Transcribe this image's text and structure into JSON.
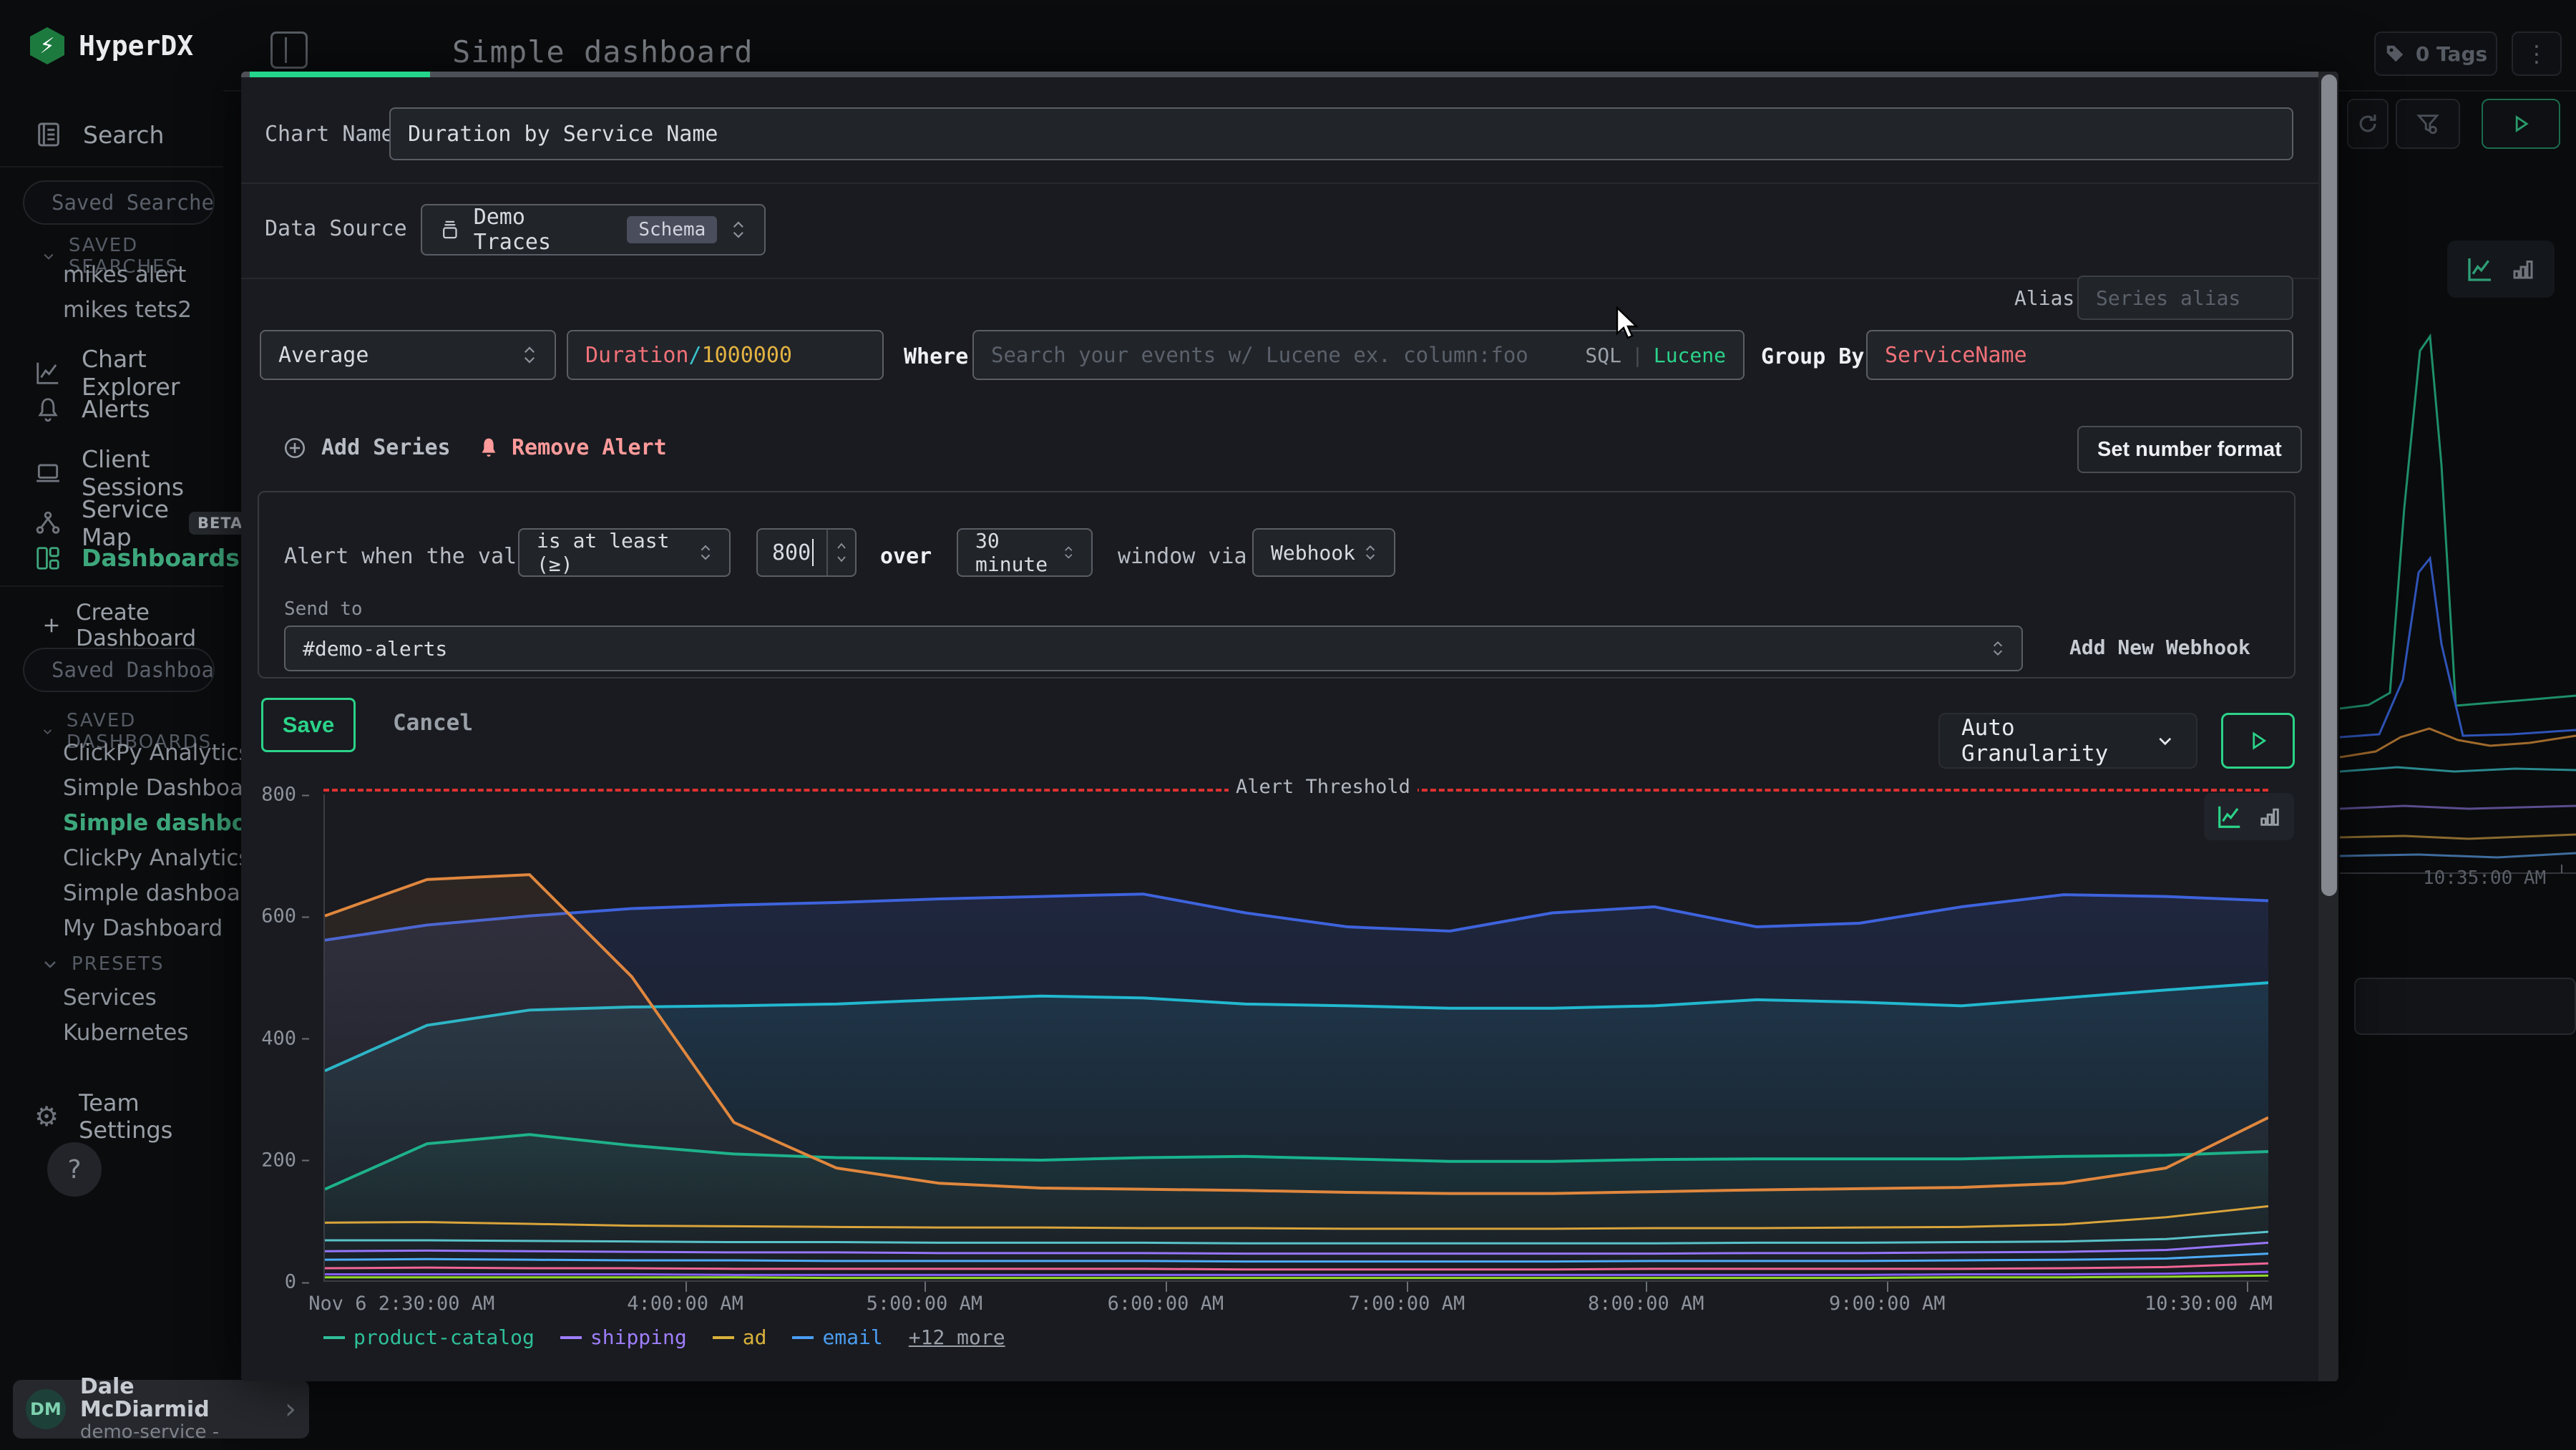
{
  "app": {
    "brand": "HyperDX",
    "accent_green": "#2bd389",
    "active_green": "#3da77c",
    "alert_red": "#e03131",
    "pink": "#ff9b9b"
  },
  "header": {
    "title": "Simple dashboard"
  },
  "topbar_right": {
    "tags_label": "0 Tags",
    "kebab": "⋮"
  },
  "sidebar": {
    "search_label": "Search",
    "saved_searches_placeholder": "Saved Searches",
    "saved_searches_header": "SAVED SEARCHES",
    "saved_searches": [
      "mikes alert",
      "mikes tets2"
    ],
    "nav": [
      {
        "label": "Chart Explorer",
        "icon": "chart-line-icon",
        "active": false
      },
      {
        "label": "Alerts",
        "icon": "bell-icon",
        "active": false
      },
      {
        "label": "Client Sessions",
        "icon": "laptop-icon",
        "active": false
      },
      {
        "label": "Service Map",
        "icon": "service-map-icon",
        "active": false,
        "badge": "BETA"
      },
      {
        "label": "Dashboards",
        "icon": "grid-icon",
        "active": true
      }
    ],
    "create_dashboard": "Create Dashboard",
    "saved_dashboards_placeholder": "Saved Dashboards",
    "saved_dashboards_header": "SAVED DASHBOARDS",
    "dashboards": [
      {
        "label": "ClickPy Analytics",
        "active": false
      },
      {
        "label": "Simple Dashboard",
        "active": false
      },
      {
        "label": "Simple dashboard",
        "active": true
      },
      {
        "label": "ClickPy Analytics",
        "active": false
      },
      {
        "label": "Simple dashboard",
        "active": false
      },
      {
        "label": "My Dashboard",
        "active": false
      }
    ],
    "presets_header": "PRESETS",
    "presets": [
      "Services",
      "Kubernetes"
    ],
    "team_settings": "Team Settings",
    "help": "?",
    "user": {
      "initials": "DM",
      "name": "Dale McDiarmid",
      "subtitle": "demo-service -",
      "caret": "›"
    }
  },
  "background_right": {
    "time_label": "10:35:00 AM"
  },
  "modal": {
    "chart_name_label": "Chart Name",
    "chart_name_value": "Duration by Service Name",
    "data_source_label": "Data Source",
    "data_source_value": "Demo Traces",
    "data_source_badge": "Schema",
    "alias_label": "Alias",
    "alias_placeholder": "Series alias",
    "aggregation_value": "Average",
    "field_expr": {
      "field": "Duration",
      "op": "/",
      "number": "1000000"
    },
    "where_label": "Where",
    "search_placeholder": "Search your events w/ Lucene ex. column:foo",
    "lang_sql": "SQL",
    "lang_sep": "|",
    "lang_lucene": "Lucene",
    "group_by_label": "Group By",
    "group_by_value": "ServiceName",
    "add_series_label": "Add Series",
    "remove_alert_label": "Remove Alert",
    "set_number_format_label": "Set number format",
    "alert": {
      "prefix": "Alert when the value",
      "condition": "is at least (≥)",
      "threshold": "800",
      "over_label": "over",
      "window": "30 minute",
      "via_label": "window via",
      "channel": "Webhook",
      "send_to_label": "Send to",
      "webhook_value": "#demo-alerts",
      "add_new_webhook_label": "Add New Webhook"
    },
    "save_label": "Save",
    "cancel_label": "Cancel",
    "granularity_value": "Auto Granularity"
  },
  "chart_data": {
    "type": "line",
    "title": "Duration by Service Name",
    "ylim": [
      0,
      800
    ],
    "yticks": [
      0,
      200,
      400,
      600,
      800
    ],
    "xticks": [
      {
        "label": "Nov 6 2:30:00 AM",
        "pos": 0
      },
      {
        "label": "4:00:00 AM",
        "pos": 18.6
      },
      {
        "label": "5:00:00 AM",
        "pos": 30.9
      },
      {
        "label": "6:00:00 AM",
        "pos": 43.3
      },
      {
        "label": "7:00:00 AM",
        "pos": 55.7
      },
      {
        "label": "8:00:00 AM",
        "pos": 68.0
      },
      {
        "label": "9:00:00 AM",
        "pos": 80.4
      },
      {
        "label": "10:30:00 AM",
        "pos": 98.9
      }
    ],
    "alert_threshold": {
      "value": 800,
      "label": "Alert Threshold",
      "color": "#e03131"
    },
    "legend": [
      {
        "label": "product-catalog",
        "color": "#2fbf9a"
      },
      {
        "label": "shipping",
        "color": "#9f7efc"
      },
      {
        "label": "ad",
        "color": "#d9b13b"
      },
      {
        "label": "email",
        "color": "#4b9df2"
      },
      {
        "label": "+12 more",
        "color": ""
      }
    ],
    "grid": false,
    "legend_position": "bottom",
    "series": [
      {
        "name": "",
        "color": "#3e63dd",
        "width": 4,
        "fill": 0.16,
        "values": [
          560,
          585,
          600,
          612,
          618,
          622,
          628,
          632,
          636,
          605,
          582,
          575,
          605,
          615,
          582,
          588,
          615,
          635,
          632,
          625
        ]
      },
      {
        "name": "",
        "color": "#22b8cf",
        "width": 4,
        "fill": 0.12,
        "values": [
          345,
          420,
          445,
          450,
          452,
          455,
          462,
          468,
          465,
          455,
          452,
          448,
          448,
          452,
          462,
          458,
          452,
          465,
          478,
          490
        ]
      },
      {
        "name": "product-catalog",
        "color": "#18b38c",
        "width": 4,
        "fill": 0.1,
        "values": [
          150,
          225,
          240,
          222,
          208,
          202,
          200,
          198,
          202,
          204,
          200,
          196,
          196,
          199,
          200,
          200,
          200,
          204,
          206,
          212
        ]
      },
      {
        "name": "",
        "color": "#e0873e",
        "width": 4,
        "fill": 0.1,
        "values": [
          600,
          660,
          668,
          500,
          260,
          185,
          160,
          152,
          150,
          148,
          145,
          143,
          143,
          146,
          149,
          151,
          153,
          160,
          185,
          268
        ]
      },
      {
        "name": "ad",
        "color": "#d9a43b",
        "width": 3,
        "fill": 0,
        "values": [
          95,
          96,
          93,
          90,
          89,
          88,
          87,
          87,
          86,
          86,
          85,
          85,
          85,
          86,
          86,
          87,
          88,
          92,
          104,
          122
        ]
      },
      {
        "name": "",
        "color": "#59c2c9",
        "width": 3,
        "fill": 0,
        "values": [
          66,
          66,
          65,
          64,
          63,
          63,
          62,
          62,
          62,
          61,
          61,
          61,
          61,
          61,
          62,
          62,
          63,
          64,
          68,
          80
        ]
      },
      {
        "name": "shipping",
        "color": "#9775fa",
        "width": 3,
        "fill": 0,
        "values": [
          48,
          49,
          48,
          47,
          46,
          46,
          45,
          45,
          45,
          44,
          44,
          44,
          44,
          44,
          45,
          45,
          46,
          47,
          50,
          62
        ]
      },
      {
        "name": "email",
        "color": "#4dabf7",
        "width": 3,
        "fill": 0,
        "values": [
          34,
          35,
          34,
          33,
          33,
          32,
          32,
          32,
          32,
          31,
          31,
          31,
          31,
          32,
          32,
          32,
          33,
          34,
          36,
          44
        ]
      },
      {
        "name": "",
        "color": "#f06595",
        "width": 3,
        "fill": 0,
        "values": [
          20,
          21,
          20,
          20,
          19,
          19,
          19,
          19,
          19,
          18,
          18,
          18,
          18,
          19,
          19,
          19,
          19,
          20,
          22,
          28
        ]
      },
      {
        "name": "",
        "color": "#845ef7",
        "width": 3,
        "fill": 0,
        "values": [
          10,
          10,
          10,
          10,
          9,
          9,
          9,
          9,
          9,
          9,
          9,
          9,
          9,
          9,
          9,
          9,
          10,
          10,
          11,
          14
        ]
      },
      {
        "name": "",
        "color": "#94d82d",
        "width": 3,
        "fill": 0,
        "values": [
          5,
          5,
          5,
          5,
          5,
          4,
          4,
          4,
          4,
          4,
          4,
          4,
          4,
          4,
          4,
          4,
          5,
          5,
          6,
          8
        ]
      }
    ]
  }
}
